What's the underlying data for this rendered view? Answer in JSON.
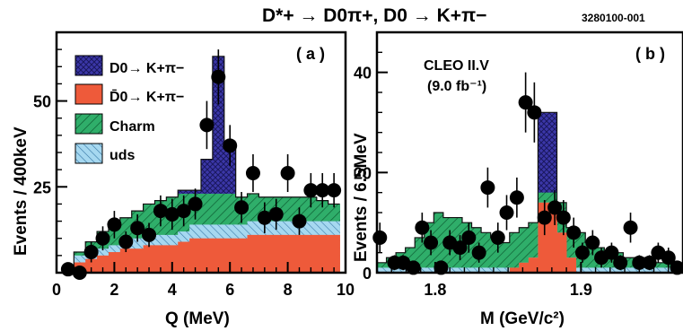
{
  "figure": {
    "title": "D*+ → D0π+,  D0 → K+π−",
    "figure_id": "3280100-001"
  },
  "colors": {
    "signal": "#3b37a8",
    "dbar": "#ee5a3a",
    "charm": "#2fae6a",
    "uds": "#a6d8f0",
    "points": "#000000"
  },
  "chart_data": [
    {
      "type": "histogram",
      "panel_label": "( a )",
      "xlabel": "Q (MeV)",
      "ylabel": "Events / 400keV",
      "xlim": [
        0,
        10
      ],
      "ylim": [
        0,
        70
      ],
      "x_ticks": [
        0,
        2,
        4,
        6,
        8,
        10
      ],
      "y_ticks": [
        25,
        50
      ],
      "bin_width": 0.4,
      "bin_edges_start": 0.2,
      "legend": [
        {
          "key": "signal",
          "label": "D0→ K+π−"
        },
        {
          "key": "dbar",
          "label": "D̄0→ K+π−"
        },
        {
          "key": "charm",
          "label": "Charm"
        },
        {
          "key": "uds",
          "label": "uds"
        }
      ],
      "stack_levels": {
        "dbar": [
          1,
          3,
          4,
          5,
          6,
          7,
          7,
          8,
          8,
          8,
          9,
          10,
          10,
          10,
          10,
          10,
          11,
          11,
          11,
          11,
          11,
          11,
          11,
          11
        ],
        "uds": [
          2,
          5,
          6,
          7,
          8,
          10,
          10,
          11,
          11,
          11,
          12,
          14,
          14,
          14,
          14,
          14,
          15,
          15,
          15,
          15,
          15,
          15,
          15,
          15
        ],
        "charm": [
          2,
          6,
          9,
          12,
          14,
          16,
          18,
          20,
          21,
          22,
          23,
          23,
          23,
          23,
          23,
          22,
          23,
          22,
          22,
          22,
          22,
          22,
          21,
          20
        ],
        "signal": [
          2,
          6,
          9,
          12,
          14,
          16,
          18,
          20,
          21,
          22,
          24,
          24,
          33,
          63,
          37,
          22,
          23,
          22,
          22,
          22,
          22,
          22,
          21,
          20
        ]
      },
      "points": {
        "x": [
          0.4,
          0.8,
          1.2,
          1.6,
          2.0,
          2.4,
          2.8,
          3.2,
          3.6,
          4.0,
          4.4,
          4.8,
          5.2,
          5.6,
          6.0,
          6.4,
          6.8,
          7.2,
          7.6,
          8.0,
          8.4,
          8.8,
          9.2,
          9.6
        ],
        "y": [
          1,
          0,
          6,
          10,
          14,
          9,
          13,
          11,
          18,
          17,
          18,
          20,
          43,
          57,
          37,
          19,
          29,
          16,
          17,
          29,
          15,
          24,
          24,
          24
        ],
        "err": [
          1,
          1,
          3,
          3.5,
          4,
          3,
          4,
          3.5,
          4.5,
          4.5,
          4.5,
          4.5,
          7,
          8,
          6,
          4.5,
          5.5,
          4.5,
          4.5,
          5.5,
          4,
          5,
          5,
          5
        ]
      }
    },
    {
      "type": "histogram",
      "panel_label": "( b )",
      "annotation_line1": "CLEO II.V",
      "annotation_line2": "(9.0 fb⁻¹)",
      "xlabel": "M (GeV/c²)",
      "ylabel": "Events / 6.5MeV",
      "xlim": [
        1.76,
        1.97
      ],
      "ylim": [
        0,
        48
      ],
      "x_ticks": [
        1.8,
        1.9
      ],
      "y_ticks": [
        0,
        20,
        40
      ],
      "bin_width": 0.0065,
      "bin_edges_start": 1.76,
      "stack_levels": {
        "dbar": [
          0,
          0,
          0,
          0,
          0,
          0,
          0,
          0,
          0,
          0,
          0,
          0,
          0,
          0,
          1,
          2,
          3,
          14,
          14,
          8,
          3,
          0,
          0,
          0,
          0,
          0,
          0,
          0,
          0,
          0,
          0,
          0
        ],
        "uds": [
          1,
          1,
          1,
          1,
          1,
          1,
          1,
          1,
          1,
          1,
          1,
          1,
          1,
          1,
          1,
          2,
          3,
          14,
          14,
          8,
          3,
          1,
          1,
          1,
          1,
          1,
          1,
          1,
          1,
          1,
          1,
          1
        ],
        "charm": [
          2,
          3,
          4,
          5,
          7,
          10,
          12,
          11,
          11,
          10,
          9,
          8,
          7,
          6,
          8,
          9,
          10,
          16,
          16,
          14,
          9,
          8,
          6,
          5,
          4,
          4,
          3,
          3,
          3,
          2,
          2,
          2
        ],
        "signal": [
          2,
          3,
          4,
          5,
          7,
          10,
          12,
          11,
          11,
          10,
          9,
          8,
          7,
          6,
          8,
          9,
          10,
          32,
          32,
          14,
          9,
          8,
          6,
          5,
          4,
          4,
          3,
          3,
          3,
          2,
          2,
          2
        ]
      },
      "points": {
        "x": [
          1.762,
          1.772,
          1.778,
          1.785,
          1.791,
          1.797,
          1.804,
          1.81,
          1.817,
          1.823,
          1.83,
          1.836,
          1.843,
          1.849,
          1.856,
          1.862,
          1.868,
          1.875,
          1.882,
          1.888,
          1.895,
          1.901,
          1.908,
          1.914,
          1.921,
          1.927,
          1.934,
          1.94,
          1.947,
          1.953,
          1.96,
          1.966
        ],
        "y": [
          7,
          2,
          2,
          1,
          9,
          6,
          1,
          6,
          5,
          7,
          4,
          17,
          7,
          12,
          15,
          34,
          32,
          11,
          13,
          11,
          8,
          4,
          6,
          3,
          4,
          2,
          9,
          2,
          2,
          4,
          3,
          1
        ],
        "err": [
          3,
          1.5,
          1.5,
          1,
          3,
          2.5,
          1,
          2.5,
          2.5,
          3,
          2,
          4,
          3,
          3.5,
          4,
          6,
          6,
          3.5,
          3.5,
          3.5,
          3,
          2,
          2.5,
          2,
          2,
          1.5,
          3,
          1.5,
          1.5,
          2,
          2,
          1
        ]
      }
    }
  ]
}
